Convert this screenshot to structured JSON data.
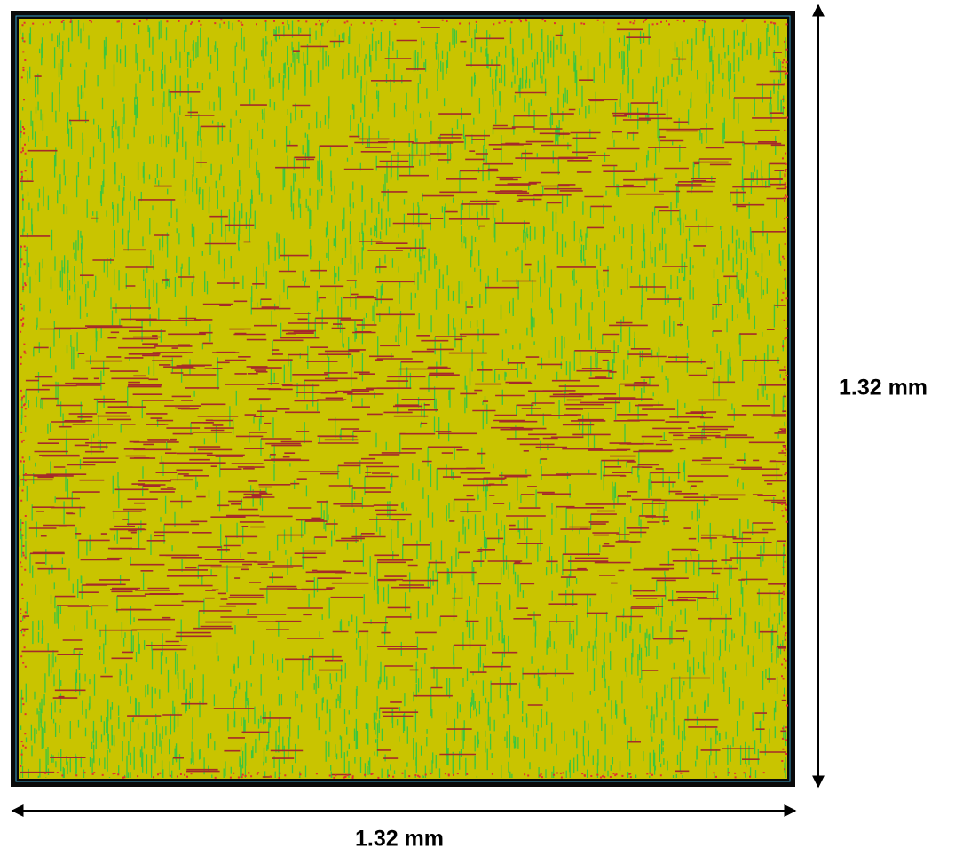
{
  "dimensions": {
    "width": "1.32 mm",
    "height": "1.32 mm"
  }
}
